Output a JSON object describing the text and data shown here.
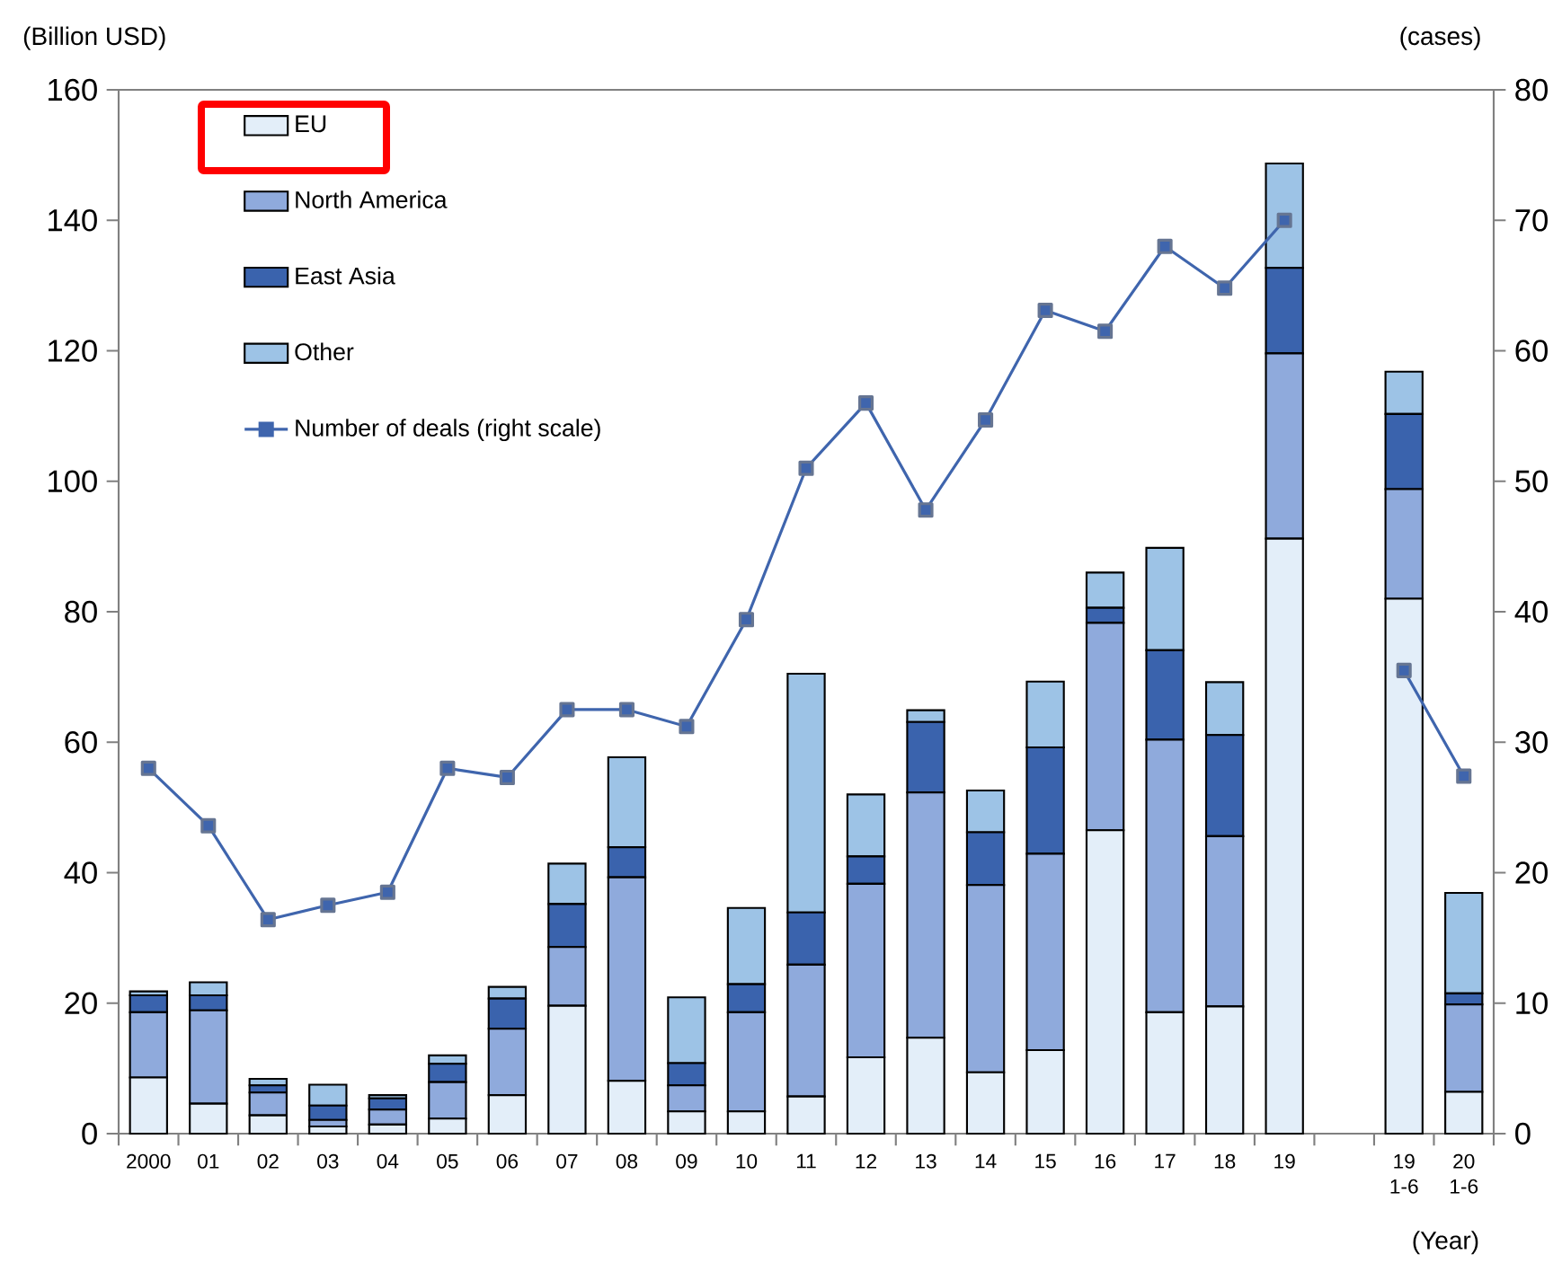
{
  "chart_data": {
    "type": "bar",
    "stacked": true,
    "ylabel": "(Billion USD)",
    "y2label": "(cases)",
    "xlabel": "(Year)",
    "categories": [
      "2000",
      "01",
      "02",
      "03",
      "04",
      "05",
      "06",
      "07",
      "08",
      "09",
      "10",
      "11",
      "12",
      "13",
      "14",
      "15",
      "16",
      "17",
      "18",
      "19",
      null,
      "19 1-6",
      "20 1-6"
    ],
    "series": [
      {
        "name": "EU",
        "color": "#e3eef9",
        "values": [
          8.6,
          4.6,
          2.8,
          1.1,
          1.4,
          2.3,
          5.9,
          19.6,
          8.1,
          3.4,
          3.4,
          5.7,
          11.7,
          14.7,
          9.4,
          12.8,
          46.5,
          18.6,
          19.5,
          91.2,
          null,
          82.0,
          6.4
        ]
      },
      {
        "name": "North America",
        "color": "#8faadc",
        "values": [
          10.0,
          14.3,
          3.5,
          1.0,
          2.3,
          5.6,
          10.2,
          9.0,
          31.2,
          4.0,
          15.2,
          20.2,
          26.6,
          37.6,
          28.7,
          30.1,
          31.8,
          41.8,
          26.1,
          28.4,
          null,
          16.8,
          13.4
        ]
      },
      {
        "name": "East Asia",
        "color": "#3a63ad",
        "values": [
          2.6,
          2.3,
          1.1,
          2.2,
          1.7,
          2.8,
          4.6,
          6.6,
          4.6,
          3.4,
          4.3,
          8.0,
          4.2,
          10.8,
          8.1,
          16.3,
          2.3,
          13.7,
          15.5,
          13.1,
          null,
          11.5,
          1.7
        ]
      },
      {
        "name": "Other",
        "color": "#9dc3e6",
        "values": [
          0.6,
          2.0,
          1.0,
          3.2,
          0.5,
          1.3,
          1.8,
          6.2,
          13.8,
          10.1,
          11.7,
          36.6,
          9.5,
          1.8,
          6.4,
          10.1,
          5.4,
          15.7,
          8.1,
          16.0,
          null,
          6.5,
          15.4
        ]
      },
      {
        "name": "Number of deals (right scale)",
        "type": "line",
        "axis": "y2",
        "color": "#3f65ad",
        "marker": "square",
        "values": [
          28.0,
          23.6,
          16.4,
          17.5,
          18.5,
          28.0,
          27.3,
          32.5,
          32.5,
          31.2,
          39.4,
          51.0,
          56.0,
          47.8,
          54.7,
          63.1,
          61.5,
          68.0,
          64.8,
          70.0,
          null,
          35.5,
          27.4
        ]
      }
    ],
    "ylim": [
      0,
      160
    ],
    "yticks": [
      0,
      20,
      40,
      60,
      80,
      100,
      120,
      140,
      160
    ],
    "y2lim": [
      0,
      80
    ],
    "y2ticks": [
      0,
      10,
      20,
      30,
      40,
      50,
      60,
      70,
      80
    ],
    "grid": false,
    "legend": "top left"
  }
}
